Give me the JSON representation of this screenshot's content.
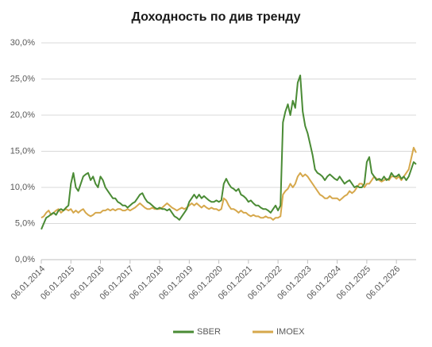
{
  "chart_data": {
    "type": "line",
    "title": "Доходность  по див тренду",
    "categories": [
      "06.01.2014",
      null,
      null,
      null,
      null,
      null,
      null,
      null,
      null,
      null,
      null,
      null,
      "06.01.2015",
      null,
      null,
      null,
      null,
      null,
      null,
      null,
      null,
      null,
      null,
      null,
      "06.01.2016",
      null,
      null,
      null,
      null,
      null,
      null,
      null,
      null,
      null,
      null,
      null,
      "06.01.2017",
      null,
      null,
      null,
      null,
      null,
      null,
      null,
      null,
      null,
      null,
      null,
      "06.01.2018",
      null,
      null,
      null,
      null,
      null,
      null,
      null,
      null,
      null,
      null,
      null,
      "06.01.2019",
      null,
      null,
      null,
      null,
      null,
      null,
      null,
      null,
      null,
      null,
      null,
      "06.01.2020",
      null,
      null,
      null,
      null,
      null,
      null,
      null,
      null,
      null,
      null,
      null,
      "06.01.2021",
      null,
      null,
      null,
      null,
      null,
      null,
      null,
      null,
      null,
      null,
      null,
      "06.01.2022",
      null,
      null,
      null,
      null,
      null,
      null,
      null,
      null,
      null,
      null,
      null,
      "06.01.2023",
      null,
      null,
      null,
      null,
      null,
      null,
      null,
      null,
      null,
      null,
      null,
      "06.01.2024",
      null,
      null,
      null,
      null,
      null,
      null,
      null,
      null,
      null,
      null,
      null,
      "06.01.2025",
      null,
      null,
      null,
      null,
      null,
      null,
      null,
      null,
      null,
      null,
      null,
      "06.01.2026",
      null,
      null,
      null,
      null,
      null,
      null,
      null,
      null
    ],
    "series": [
      {
        "name": "SBER",
        "color": "#4a8b35",
        "values": [
          4.2,
          5.0,
          5.8,
          6.0,
          6.3,
          6.5,
          6.2,
          6.8,
          7.0,
          6.8,
          7.2,
          7.5,
          10.5,
          12.0,
          10.0,
          9.5,
          10.5,
          11.5,
          11.8,
          12.0,
          11.0,
          11.5,
          10.5,
          10.0,
          11.5,
          11.0,
          10.0,
          9.5,
          9.0,
          8.5,
          8.5,
          8.0,
          7.8,
          7.5,
          7.5,
          7.2,
          7.5,
          7.8,
          8.0,
          8.5,
          9.0,
          9.2,
          8.5,
          8.0,
          7.8,
          7.5,
          7.2,
          7.0,
          7.2,
          7.0,
          7.0,
          6.8,
          7.0,
          6.5,
          6.0,
          5.8,
          5.5,
          6.0,
          6.5,
          7.0,
          8.0,
          8.5,
          9.0,
          8.5,
          9.0,
          8.5,
          8.8,
          8.5,
          8.2,
          8.0,
          8.0,
          8.2,
          8.0,
          8.2,
          10.5,
          11.2,
          10.5,
          10.0,
          9.8,
          9.5,
          9.8,
          9.0,
          8.8,
          8.5,
          8.0,
          8.2,
          7.8,
          7.5,
          7.5,
          7.2,
          7.0,
          7.0,
          6.8,
          6.5,
          7.0,
          7.5,
          6.8,
          7.5,
          19.0,
          20.5,
          21.5,
          20.0,
          22.0,
          21.0,
          24.5,
          25.5,
          20.5,
          18.5,
          17.5,
          16.0,
          14.5,
          12.5,
          12.0,
          11.8,
          11.5,
          11.0,
          11.5,
          11.8,
          11.5,
          11.2,
          11.0,
          11.5,
          11.0,
          10.5,
          10.8,
          11.0,
          10.5,
          10.0,
          10.2,
          10.0,
          10.0,
          10.5,
          13.5,
          14.2,
          12.0,
          11.5,
          11.0,
          11.2,
          11.0,
          11.5,
          11.0,
          11.2,
          12.0,
          11.5,
          11.5,
          11.8,
          11.2,
          11.5,
          11.0,
          11.5,
          12.5,
          13.5,
          13.2
        ]
      },
      {
        "name": "IMOEX",
        "color": "#d6a84c",
        "values": [
          5.8,
          6.0,
          6.5,
          6.8,
          6.2,
          6.5,
          6.8,
          7.0,
          6.5,
          6.8,
          7.0,
          6.8,
          7.0,
          6.5,
          6.8,
          6.5,
          6.8,
          7.0,
          6.5,
          6.2,
          6.0,
          6.2,
          6.5,
          6.5,
          6.5,
          6.8,
          6.8,
          7.0,
          6.8,
          7.0,
          6.8,
          7.0,
          7.0,
          6.8,
          6.8,
          7.0,
          6.8,
          7.0,
          7.2,
          7.5,
          7.8,
          7.5,
          7.2,
          7.0,
          7.0,
          7.2,
          7.0,
          7.0,
          7.0,
          7.2,
          7.5,
          7.8,
          7.5,
          7.2,
          7.0,
          6.8,
          7.0,
          7.2,
          7.0,
          7.2,
          7.5,
          7.8,
          7.5,
          7.8,
          7.5,
          7.2,
          7.5,
          7.2,
          7.0,
          7.2,
          7.0,
          7.0,
          6.8,
          7.0,
          8.5,
          8.2,
          7.5,
          7.0,
          7.0,
          6.8,
          6.5,
          6.8,
          6.5,
          6.5,
          6.2,
          6.0,
          6.2,
          6.0,
          6.0,
          5.8,
          5.8,
          6.0,
          5.8,
          5.8,
          5.5,
          5.8,
          5.8,
          6.0,
          9.0,
          9.5,
          9.8,
          10.5,
          10.0,
          10.5,
          11.5,
          12.0,
          11.5,
          11.8,
          11.5,
          11.0,
          10.5,
          10.0,
          9.5,
          9.0,
          8.8,
          8.5,
          8.5,
          8.8,
          8.5,
          8.5,
          8.5,
          8.2,
          8.5,
          8.8,
          9.0,
          9.5,
          9.2,
          9.5,
          10.0,
          10.5,
          10.5,
          10.0,
          10.5,
          10.5,
          11.0,
          11.5,
          11.2,
          11.0,
          10.8,
          11.0,
          11.2,
          11.0,
          11.5,
          11.5,
          11.2,
          11.5,
          11.0,
          11.5,
          12.0,
          12.5,
          14.0,
          15.5,
          14.8
        ]
      }
    ],
    "ylim": [
      0,
      30
    ],
    "yticks": [
      {
        "value": 0,
        "label": "0,0%"
      },
      {
        "value": 5,
        "label": "5,0%"
      },
      {
        "value": 10,
        "label": "10,0%"
      },
      {
        "value": 15,
        "label": "15,0%"
      },
      {
        "value": 20,
        "label": "20,0%"
      },
      {
        "value": 25,
        "label": "25,0%"
      },
      {
        "value": 30,
        "label": "30,0%"
      }
    ],
    "grid": true,
    "legend": "bottom"
  }
}
